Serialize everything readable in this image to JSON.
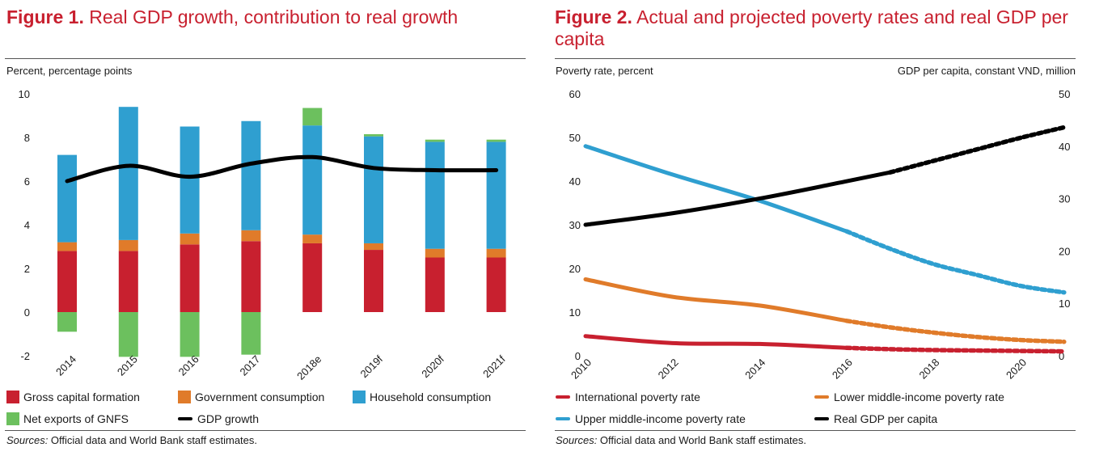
{
  "figure1": {
    "title_bold": "Figure 1.",
    "title_rest": " Real GDP growth, contribution to real growth",
    "axis_label": "Percent, percentage points",
    "sources_label": "Sources:",
    "sources_text": " Official data and World Bank staff estimates."
  },
  "figure2": {
    "title_bold": "Figure 2.",
    "title_rest": " Actual and projected poverty rates and real GDP per capita",
    "left_axis_label": "Poverty rate, percent",
    "right_axis_label": "GDP per capita, constant VND, million",
    "sources_label": "Sources:",
    "sources_text": " Official data and World Bank staff estimates."
  },
  "chart_data": [
    {
      "type": "bar",
      "stacked": true,
      "title": "Real GDP growth, contribution to real growth",
      "ylabel": "Percent, percentage points",
      "ylim": [
        -2,
        10
      ],
      "yticks": [
        -2,
        0,
        2,
        4,
        6,
        8,
        10
      ],
      "categories": [
        "2014",
        "2015",
        "2016",
        "2017",
        "2018e",
        "2019f",
        "2020f",
        "2021f"
      ],
      "series": [
        {
          "name": "Gross capital formation",
          "color": "#c8202f",
          "values": [
            2.8,
            2.8,
            3.1,
            3.25,
            3.15,
            2.85,
            2.5,
            2.5
          ]
        },
        {
          "name": "Government consumption",
          "color": "#e07b2a",
          "values": [
            0.4,
            0.5,
            0.5,
            0.5,
            0.4,
            0.3,
            0.4,
            0.4
          ]
        },
        {
          "name": "Household consumption",
          "color": "#2f9fd0",
          "values": [
            4.0,
            6.1,
            4.9,
            5.0,
            5.0,
            4.9,
            4.9,
            4.9
          ]
        },
        {
          "name": "Net exports of GNFS",
          "color": "#6cc05e",
          "values": [
            -0.9,
            -2.05,
            -2.05,
            -1.95,
            0.8,
            0.1,
            0.1,
            0.1
          ]
        }
      ],
      "line": {
        "name": "GDP growth",
        "color": "#000000",
        "values": [
          6.0,
          6.7,
          6.2,
          6.8,
          7.1,
          6.6,
          6.5,
          6.5
        ]
      },
      "legend": [
        "Gross capital formation",
        "Government consumption",
        "Household consumption",
        "Net exports of GNFS",
        "GDP growth"
      ]
    },
    {
      "type": "line",
      "title": "Actual and projected poverty rates and real GDP per capita",
      "ylabel": "Poverty rate, percent",
      "y2label": "GDP per capita, constant VND, million",
      "ylim": [
        0,
        60
      ],
      "y2lim": [
        0,
        50
      ],
      "yticks": [
        0,
        10,
        20,
        30,
        40,
        50,
        60
      ],
      "y2ticks": [
        0,
        10,
        20,
        30,
        40,
        50
      ],
      "xlim": [
        2010,
        2021
      ],
      "xticks": [
        2010,
        2012,
        2014,
        2016,
        2018,
        2020
      ],
      "series": [
        {
          "name": "International poverty rate",
          "color": "#c8202f",
          "axis": "left",
          "projected_from": 2016,
          "x": [
            2010,
            2012,
            2014,
            2016,
            2017,
            2018,
            2019,
            2020,
            2021
          ],
          "y": [
            4.5,
            2.9,
            2.7,
            1.8,
            1.5,
            1.3,
            1.2,
            1.1,
            1.0
          ]
        },
        {
          "name": "Lower middle-income poverty rate",
          "color": "#e07b2a",
          "axis": "left",
          "projected_from": 2016,
          "x": [
            2010,
            2012,
            2014,
            2016,
            2017,
            2018,
            2019,
            2020,
            2021
          ],
          "y": [
            17.5,
            13.5,
            11.5,
            8.0,
            6.5,
            5.3,
            4.3,
            3.6,
            3.2
          ]
        },
        {
          "name": "Upper middle-income poverty rate",
          "color": "#2f9fd0",
          "axis": "left",
          "projected_from": 2016,
          "x": [
            2010,
            2012,
            2014,
            2016,
            2017,
            2018,
            2019,
            2020,
            2021
          ],
          "y": [
            48.0,
            41.5,
            35.5,
            28.5,
            24.5,
            21.0,
            18.5,
            16.0,
            14.5
          ]
        },
        {
          "name": "Real GDP per capita",
          "color": "#000000",
          "axis": "right",
          "projected_from": 2017,
          "x": [
            2010,
            2012,
            2014,
            2016,
            2017,
            2018,
            2019,
            2020,
            2021
          ],
          "y": [
            25.0,
            27.2,
            30.0,
            33.3,
            35.0,
            37.2,
            39.4,
            41.6,
            43.6
          ]
        }
      ],
      "legend": [
        "International poverty rate",
        "Lower middle-income poverty rate",
        "Upper middle-income poverty rate",
        "Real GDP per capita"
      ]
    }
  ]
}
